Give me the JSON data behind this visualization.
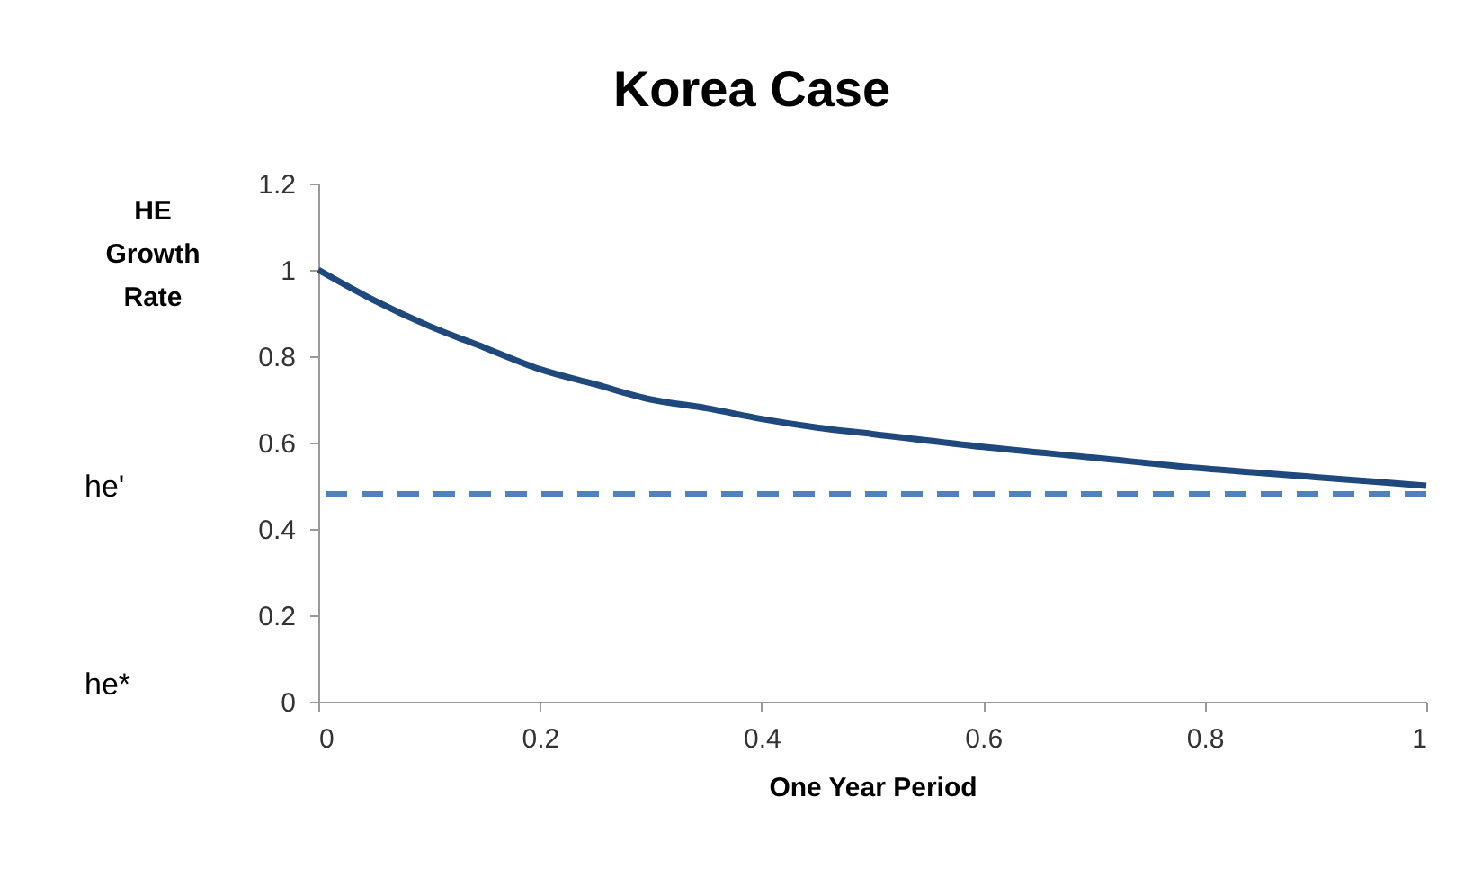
{
  "chart_data": {
    "type": "line",
    "title": "Korea Case",
    "xlabel": "One Year Period",
    "ylabel": "HE Growth Rate",
    "x": [
      0,
      0.05,
      0.1,
      0.15,
      0.2,
      0.25,
      0.3,
      0.35,
      0.4,
      0.45,
      0.5,
      0.6,
      0.7,
      0.8,
      0.9,
      1.0
    ],
    "series": [
      {
        "color": "#1f497d",
        "values": [
          1.0,
          0.93,
          0.87,
          0.82,
          0.77,
          0.735,
          0.7,
          0.68,
          0.655,
          0.635,
          0.62,
          0.59,
          0.565,
          0.54,
          0.52,
          0.5
        ]
      }
    ],
    "xlim": [
      0,
      1
    ],
    "xticks": [
      0,
      0.2,
      0.4,
      0.6,
      0.8,
      1
    ],
    "ylim": [
      0,
      1.2
    ],
    "yticks": [
      0,
      0.2,
      0.4,
      0.6,
      0.8,
      1,
      1.2
    ],
    "ref_lines": [
      {
        "axis": "y",
        "value": 0.48,
        "color": "#4f81bd",
        "line_style": "dashed"
      }
    ],
    "annotations": [
      "he'",
      "he*"
    ],
    "grid": false,
    "marker": "none",
    "line_style": "solid"
  }
}
